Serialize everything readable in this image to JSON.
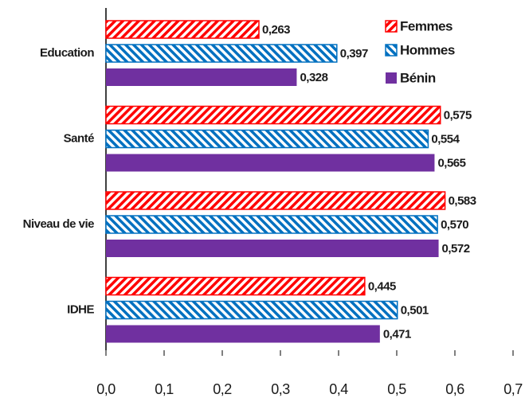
{
  "chart_data": {
    "type": "barh",
    "categories": [
      "Education",
      "Santé",
      "Niveau de vie",
      "IDHE"
    ],
    "series": [
      {
        "name": "Femmes",
        "color": "#ff0000",
        "pattern": "hatch-right",
        "values": [
          0.263,
          0.575,
          0.583,
          0.445
        ],
        "value_labels": [
          "0,263",
          "0,575",
          "0,583",
          "0,445"
        ]
      },
      {
        "name": "Hommes",
        "color": "#0070c0",
        "pattern": "hatch-left",
        "values": [
          0.397,
          0.554,
          0.57,
          0.501
        ],
        "value_labels": [
          "0,397",
          "0,554",
          "0,570",
          "0,501"
        ]
      },
      {
        "name": "Bénin",
        "color": "#7030a0",
        "pattern": "solid",
        "values": [
          0.328,
          0.565,
          0.572,
          0.471
        ],
        "value_labels": [
          "0,328",
          "0,565",
          "0,572",
          "0,471"
        ]
      }
    ],
    "xlim": [
      0,
      0.7
    ],
    "xticks": [
      {
        "value": 0,
        "label": "0,0"
      },
      {
        "value": 0.1,
        "label": "0,1"
      },
      {
        "value": 0.2,
        "label": "0,2"
      },
      {
        "value": 0.3,
        "label": "0,3"
      },
      {
        "value": 0.4,
        "label": "0,4"
      },
      {
        "value": 0.5,
        "label": "0,5"
      },
      {
        "value": 0.6,
        "label": "0,6"
      },
      {
        "value": 0.7,
        "label": "0,7"
      }
    ],
    "grid": false,
    "legend": "upper right"
  }
}
